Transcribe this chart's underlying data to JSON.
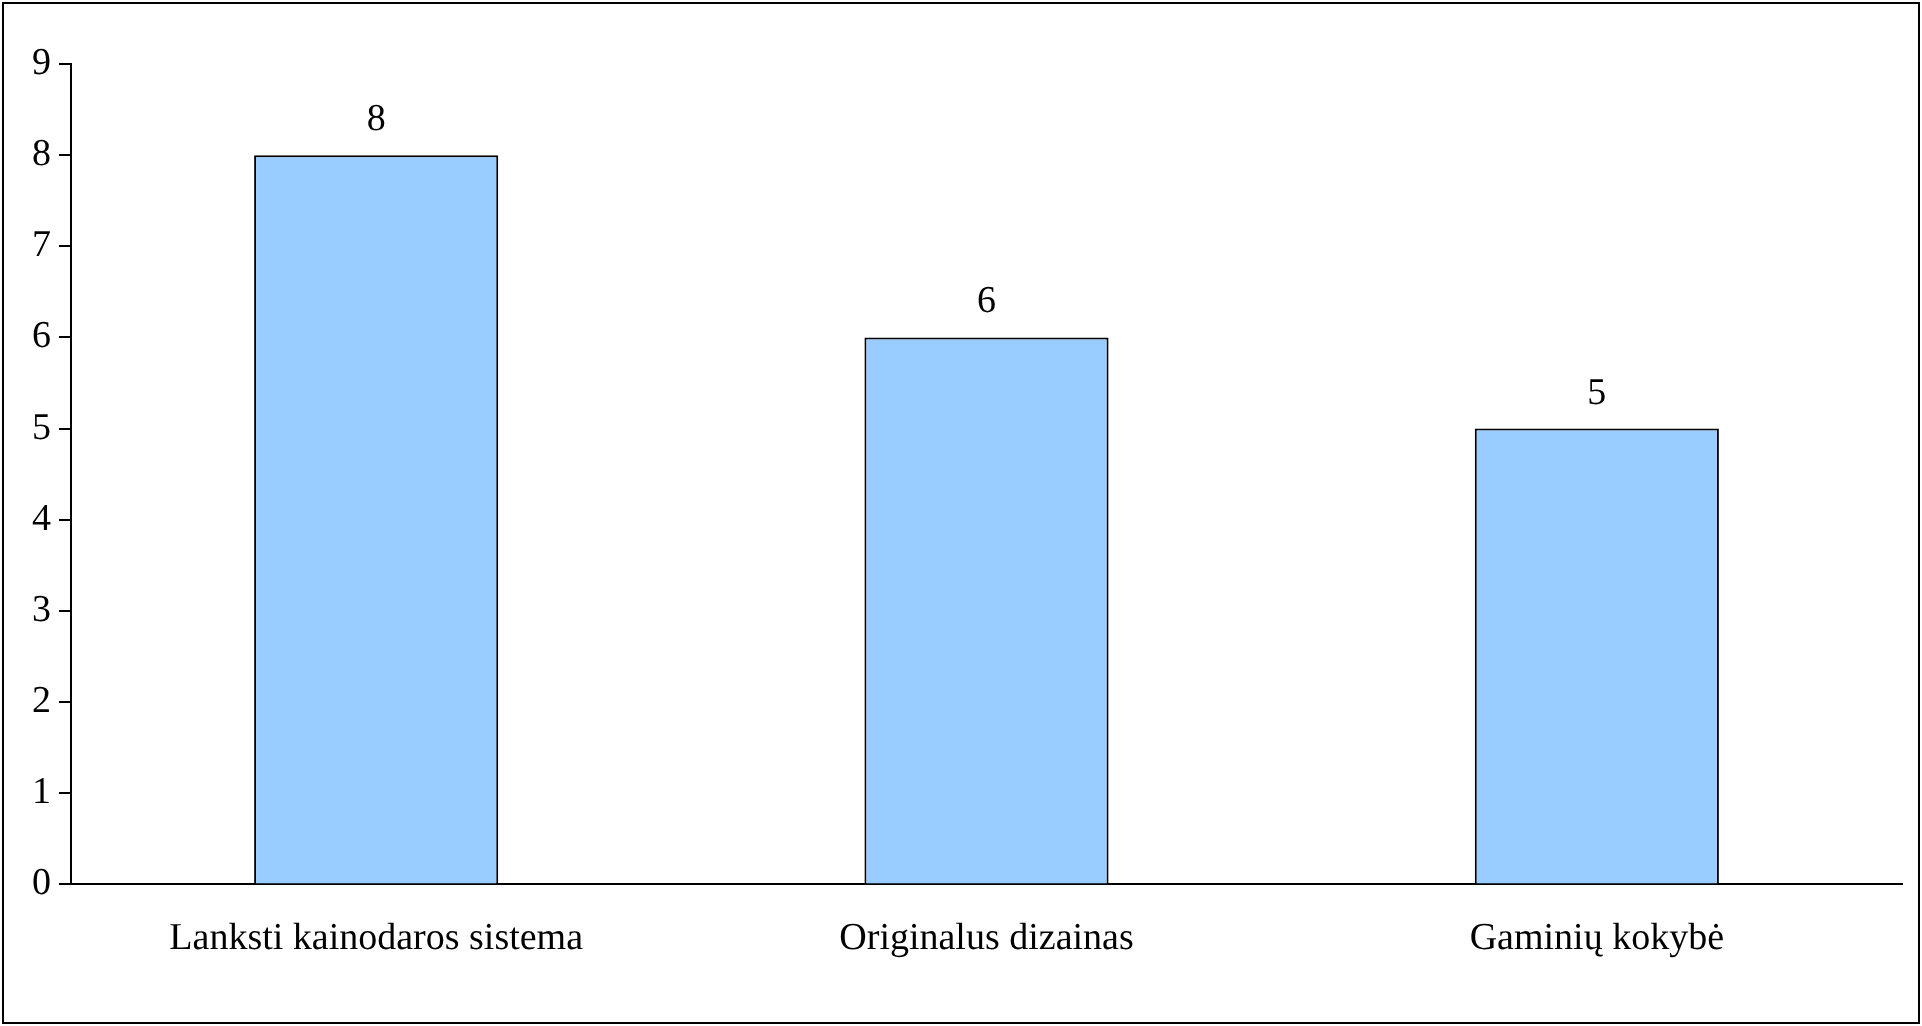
{
  "chart_data": {
    "type": "bar",
    "categories": [
      "Lanksti kainodaros sistema",
      "Originalus dizainas",
      "Gaminių kokybė"
    ],
    "values": [
      8,
      6,
      5
    ],
    "color": "#99ccff",
    "ylim": [
      0,
      9
    ],
    "yticks": [
      0,
      1,
      2,
      3,
      4,
      5,
      6,
      7,
      8,
      9
    ],
    "grid": false,
    "legend": false,
    "data_labels": true
  }
}
